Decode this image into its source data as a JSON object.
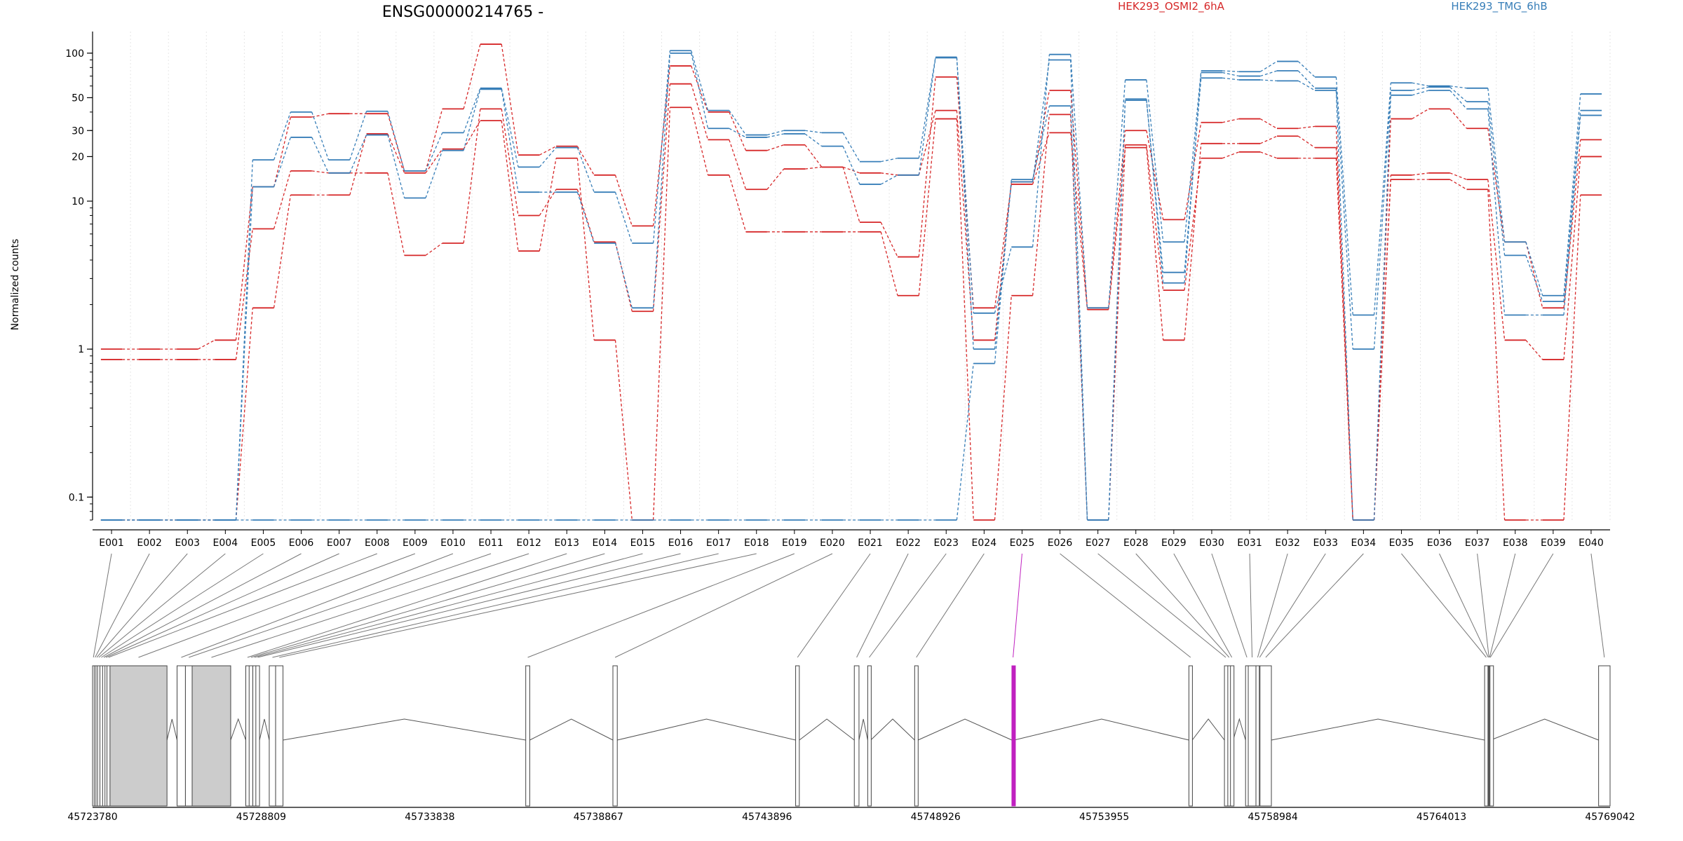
{
  "chart_data": {
    "type": "line",
    "title": "ENSG00000214765 -",
    "ylabel": "Normalized counts",
    "yscale": "log",
    "yticks": [
      0.1,
      1,
      10,
      20,
      30,
      50,
      100
    ],
    "ylim": [
      0.07,
      140
    ],
    "legend": [
      {
        "name": "HEK293_OSMI2_6hA",
        "color": "#d62728"
      },
      {
        "name": "HEK293_TMG_6hB",
        "color": "#377eb8"
      }
    ],
    "categories": [
      "E001",
      "E002",
      "E003",
      "E004",
      "E005",
      "E006",
      "E007",
      "E008",
      "E009",
      "E010",
      "E011",
      "E012",
      "E013",
      "E014",
      "E015",
      "E016",
      "E017",
      "E018",
      "E019",
      "E020",
      "E021",
      "E022",
      "E023",
      "E024",
      "E025",
      "E026",
      "E027",
      "E028",
      "E029",
      "E030",
      "E031",
      "E032",
      "E033",
      "E034",
      "E035",
      "E036",
      "E037",
      "E038",
      "E039",
      "E040"
    ],
    "series": [
      {
        "color": "#d62728",
        "values": [
          1.0,
          1.0,
          1.0,
          1.15,
          12.5,
          37,
          39,
          39,
          16,
          42,
          115,
          20.5,
          23.5,
          15,
          6.8,
          82,
          40,
          22,
          24,
          17,
          15.5,
          15,
          41,
          1.15,
          13.5,
          56,
          1.9,
          30,
          7.5,
          34,
          36,
          31,
          32,
          0.07,
          36,
          42,
          31,
          5.3,
          1.9,
          26
        ]
      },
      {
        "color": "#d62728",
        "values": [
          0.85,
          0.85,
          0.85,
          0.85,
          6.5,
          16,
          15.5,
          15.5,
          4.3,
          5.2,
          42,
          8.0,
          12,
          5.3,
          1.8,
          62,
          26,
          12,
          16.5,
          17,
          7.2,
          4.2,
          69,
          1.9,
          13,
          29,
          1.85,
          23,
          1.15,
          24.5,
          24.5,
          27.5,
          23,
          0.07,
          15,
          15.5,
          14,
          1.15,
          0.85,
          20
        ]
      },
      {
        "color": "#d62728",
        "values": [
          0.07,
          0.07,
          0.07,
          0.07,
          1.9,
          11,
          11,
          28.5,
          15.5,
          22.5,
          35,
          4.6,
          19.5,
          1.15,
          0.07,
          43,
          15,
          6.2,
          6.2,
          6.2,
          6.2,
          2.3,
          36,
          0.07,
          2.3,
          38.5,
          0.07,
          24,
          2.5,
          19.5,
          21.5,
          19.5,
          19.5,
          0.07,
          14,
          14,
          12,
          0.07,
          0.07,
          11
        ]
      },
      {
        "color": "#377eb8",
        "values": [
          0.07,
          0.07,
          0.07,
          0.07,
          19,
          40,
          19,
          40.5,
          16,
          29,
          58,
          17,
          23,
          11.5,
          5.2,
          104,
          41,
          28,
          30,
          29,
          18.5,
          19.5,
          94,
          1.75,
          4.9,
          98,
          1.9,
          66,
          5.3,
          76,
          75,
          88,
          69,
          1.7,
          63,
          60,
          58,
          5.3,
          2.3,
          53
        ]
      },
      {
        "color": "#377eb8",
        "values": [
          0.07,
          0.07,
          0.07,
          0.07,
          12.5,
          27,
          15.5,
          28,
          10.5,
          22,
          57,
          11.5,
          11.5,
          5.2,
          1.9,
          100,
          31,
          27,
          28.5,
          23.5,
          13,
          15,
          93,
          1.0,
          13.5,
          90,
          0.07,
          49,
          2.8,
          74,
          70,
          76,
          58,
          1.0,
          56,
          59,
          47,
          4.3,
          2.1,
          41
        ]
      },
      {
        "color": "#377eb8",
        "values": [
          0.07,
          0.07,
          0.07,
          0.07,
          0.07,
          0.07,
          0.07,
          0.07,
          0.07,
          0.07,
          0.07,
          0.07,
          0.07,
          0.07,
          0.07,
          0.07,
          0.07,
          0.07,
          0.07,
          0.07,
          0.07,
          0.07,
          0.07,
          0.8,
          14,
          44,
          0.07,
          48,
          3.3,
          68,
          66,
          65,
          56,
          0.07,
          52,
          56,
          42,
          1.7,
          1.7,
          38
        ]
      }
    ],
    "gene_model": {
      "axis_ticks": [
        "45723780",
        "45728809",
        "45733838",
        "45738867",
        "45743896",
        "45748926",
        "45753955",
        "45758984",
        "45764013",
        "45769042"
      ],
      "axis_range": [
        45723780,
        45769042
      ],
      "highlight_exon": "E025",
      "highlight_color": "#c020c0"
    }
  }
}
